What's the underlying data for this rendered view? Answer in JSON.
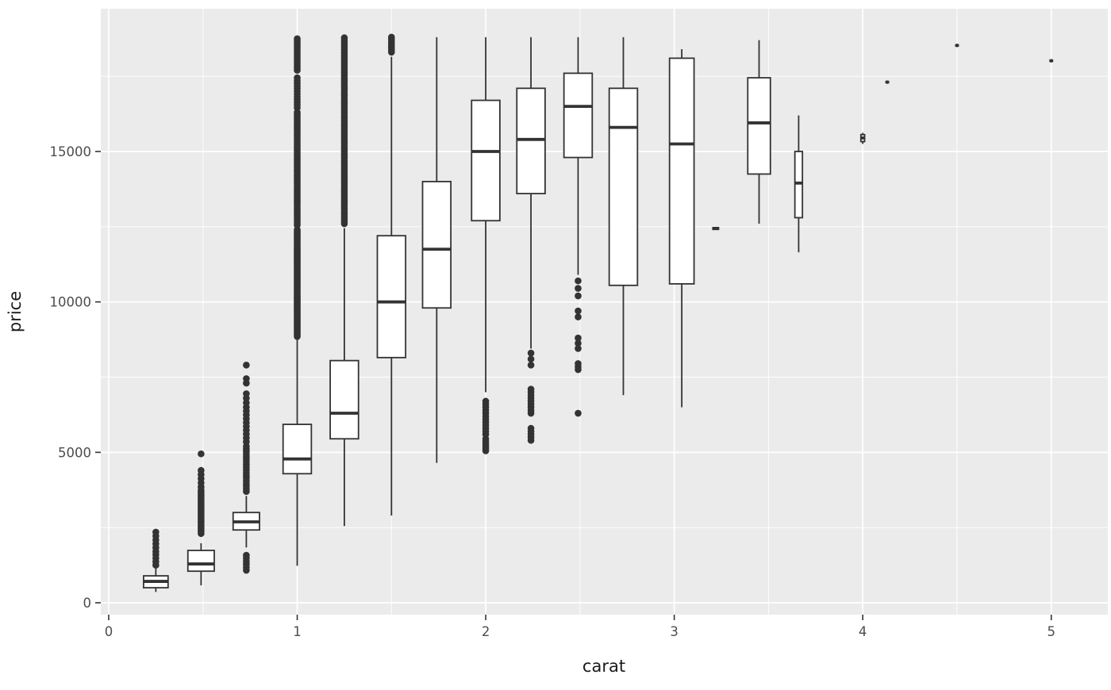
{
  "chart_data": {
    "type": "boxplot",
    "title": "",
    "xlabel": "carat",
    "ylabel": "price",
    "x_ticks": [
      0,
      1,
      2,
      3,
      4,
      5
    ],
    "y_ticks": [
      0,
      5000,
      10000,
      15000
    ],
    "x_minor": [
      0.5,
      1.5,
      2.5,
      3.5,
      4.5
    ],
    "y_minor": [
      2500,
      7500,
      12500,
      17500
    ],
    "xlim": [
      -0.042,
      5.3
    ],
    "ylim": [
      -395,
      19745
    ],
    "grid": "on",
    "legend": "none",
    "colors": {
      "panel_bg": "#ebebeb",
      "grid": "#ffffff",
      "stroke": "#333333",
      "box_fill": "#ffffff",
      "tick_text": "#4d4d4d",
      "tick_mark": "#333333",
      "title_text": "#1a1a1a"
    },
    "groups": [
      {
        "x": 0.25,
        "width": 0.13,
        "low": 360,
        "q1": 500,
        "median": 710,
        "q3": 895,
        "high": 1150,
        "outlier_runs": [
          [
            1250,
            1600,
            4
          ],
          [
            1700,
            2350,
            6
          ]
        ]
      },
      {
        "x": 0.49,
        "width": 0.14,
        "low": 580,
        "q1": 1050,
        "median": 1290,
        "q3": 1740,
        "high": 1980,
        "outlier_runs": [
          [
            2300,
            3750,
            24
          ],
          [
            3850,
            4400,
            5
          ],
          [
            4950,
            4950,
            1
          ]
        ]
      },
      {
        "x": 0.73,
        "width": 0.14,
        "low": 1840,
        "q1": 2420,
        "median": 2690,
        "q3": 3000,
        "high": 3550,
        "outlier_runs": [
          [
            1080,
            1580,
            6
          ],
          [
            3700,
            5200,
            18
          ],
          [
            5350,
            6500,
            10
          ],
          [
            6650,
            6950,
            3
          ],
          [
            7300,
            7450,
            2
          ],
          [
            7900,
            7950,
            1
          ]
        ]
      },
      {
        "x": 1.0,
        "width": 0.15,
        "low": 1230,
        "q1": 4290,
        "median": 4780,
        "q3": 5930,
        "high": 8750,
        "outlier_runs": [
          [
            8850,
            12400,
            90
          ],
          [
            12550,
            16300,
            60
          ],
          [
            16450,
            17450,
            12
          ],
          [
            17700,
            18750,
            16
          ]
        ]
      },
      {
        "x": 1.25,
        "width": 0.15,
        "low": 2550,
        "q1": 5450,
        "median": 6300,
        "q3": 8050,
        "high": 12450,
        "outlier_runs": [
          [
            12600,
            18780,
            75
          ]
        ]
      },
      {
        "x": 1.5,
        "width": 0.15,
        "low": 2900,
        "q1": 8150,
        "median": 10000,
        "q3": 12200,
        "high": 18150,
        "outlier_runs": [
          [
            18300,
            18800,
            8
          ]
        ]
      },
      {
        "x": 1.74,
        "width": 0.15,
        "low": 4650,
        "q1": 9800,
        "median": 11750,
        "q3": 14000,
        "high": 18800,
        "outlier_runs": []
      },
      {
        "x": 2.0,
        "width": 0.15,
        "low": 7000,
        "q1": 12700,
        "median": 15000,
        "q3": 16700,
        "high": 18800,
        "outlier_runs": [
          [
            5050,
            5450,
            6
          ],
          [
            5600,
            6700,
            12
          ]
        ]
      },
      {
        "x": 2.24,
        "width": 0.15,
        "low": 8450,
        "q1": 13600,
        "median": 15400,
        "q3": 17100,
        "high": 18800,
        "outlier_runs": [
          [
            5400,
            5800,
            5
          ],
          [
            6300,
            7100,
            9
          ],
          [
            7900,
            8300,
            3
          ]
        ]
      },
      {
        "x": 2.49,
        "width": 0.15,
        "low": 10900,
        "q1": 14800,
        "median": 16500,
        "q3": 17600,
        "high": 18800,
        "outlier_runs": [
          [
            6300,
            6300,
            1
          ],
          [
            7750,
            7950,
            3
          ],
          [
            8450,
            8800,
            3
          ],
          [
            9500,
            9700,
            2
          ],
          [
            10200,
            10700,
            3
          ]
        ]
      },
      {
        "x": 2.73,
        "width": 0.15,
        "low": 6900,
        "q1": 10550,
        "median": 15800,
        "q3": 17100,
        "high": 18800,
        "outlier_runs": []
      },
      {
        "x": 3.04,
        "width": 0.13,
        "low": 6500,
        "q1": 10600,
        "median": 15250,
        "q3": 18100,
        "high": 18400,
        "outlier_runs": []
      },
      {
        "x": 3.22,
        "width": 0.03,
        "low": 12390,
        "q1": 12410,
        "median": 12440,
        "q3": 12470,
        "high": 12490,
        "outlier_runs": []
      },
      {
        "x": 3.45,
        "width": 0.12,
        "low": 12600,
        "q1": 14250,
        "median": 15950,
        "q3": 17450,
        "high": 18700,
        "outlier_runs": []
      },
      {
        "x": 3.66,
        "width": 0.04,
        "low": 11650,
        "q1": 12800,
        "median": 13950,
        "q3": 15000,
        "high": 16200,
        "outlier_runs": []
      },
      {
        "x": 4.0,
        "width": 0.02,
        "low": 15250,
        "q1": 15330,
        "median": 15450,
        "q3": 15560,
        "high": 15620,
        "outlier_runs": []
      },
      {
        "x": 4.13,
        "width": 0.013,
        "low": 17250,
        "q1": 17285,
        "median": 17305,
        "q3": 17325,
        "high": 17360,
        "outlier_runs": []
      },
      {
        "x": 4.5,
        "width": 0.013,
        "low": 18470,
        "q1": 18505,
        "median": 18525,
        "q3": 18545,
        "high": 18580,
        "outlier_runs": []
      },
      {
        "x": 5.0,
        "width": 0.013,
        "low": 17960,
        "q1": 17995,
        "median": 18015,
        "q3": 18035,
        "high": 18070,
        "outlier_runs": []
      }
    ]
  }
}
